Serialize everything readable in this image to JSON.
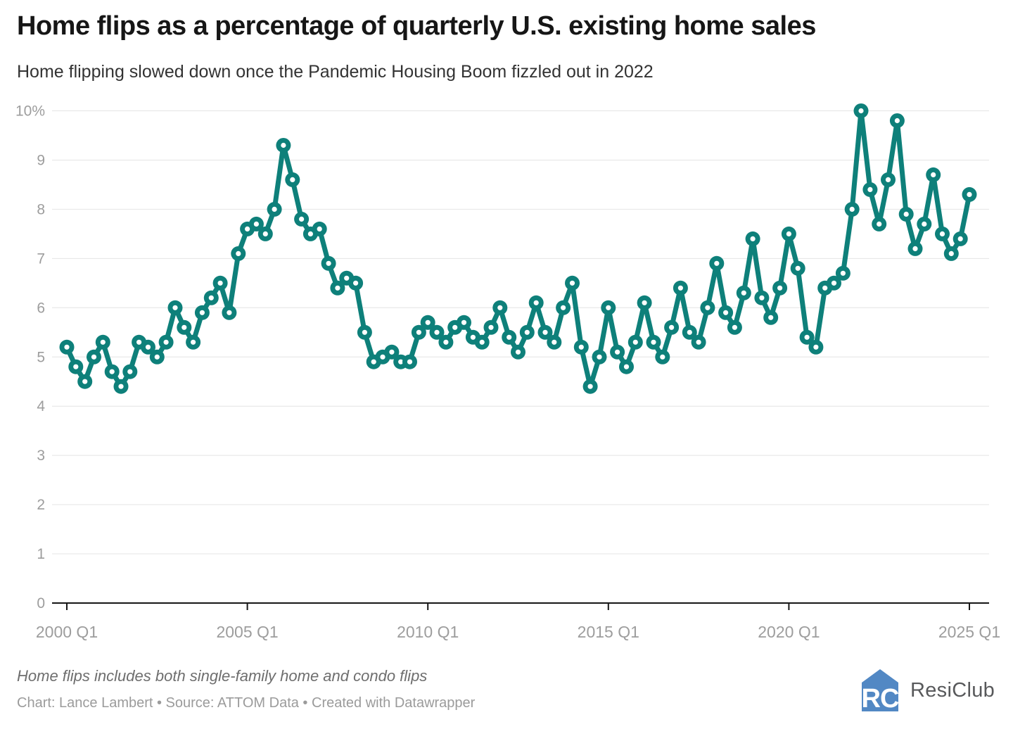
{
  "header": {
    "title": "Home flips as a percentage of quarterly U.S. existing home sales",
    "subtitle": "Home flipping slowed down once the Pandemic Housing Boom fizzled out in 2022"
  },
  "chart_data": {
    "type": "line",
    "title": "Home flips as a percentage of quarterly U.S. existing home sales",
    "subtitle": "Home flipping slowed down once the Pandemic Housing Boom fizzled out in 2022",
    "xlabel": "",
    "ylabel": "",
    "ylim": [
      0,
      10
    ],
    "grid": true,
    "legend": false,
    "line_color": "#0e807a",
    "grid_color": "#e4e4e4",
    "axis_color": "#161616",
    "tick_label_color": "#9d9d9d",
    "y_ticks": [
      "0",
      "1",
      "2",
      "3",
      "4",
      "5",
      "6",
      "7",
      "8",
      "9",
      "10%"
    ],
    "x_ticks": [
      {
        "label": "2000 Q1",
        "i": 0
      },
      {
        "label": "2005 Q1",
        "i": 20
      },
      {
        "label": "2010 Q1",
        "i": 40
      },
      {
        "label": "2015 Q1",
        "i": 60
      },
      {
        "label": "2020 Q1",
        "i": 80
      },
      {
        "label": "2025 Q1",
        "i": 100
      }
    ],
    "x": [
      "2000 Q1",
      "2000 Q2",
      "2000 Q3",
      "2000 Q4",
      "2001 Q1",
      "2001 Q2",
      "2001 Q3",
      "2001 Q4",
      "2002 Q1",
      "2002 Q2",
      "2002 Q3",
      "2002 Q4",
      "2003 Q1",
      "2003 Q2",
      "2003 Q3",
      "2003 Q4",
      "2004 Q1",
      "2004 Q2",
      "2004 Q3",
      "2004 Q4",
      "2005 Q1",
      "2005 Q2",
      "2005 Q3",
      "2005 Q4",
      "2006 Q1",
      "2006 Q2",
      "2006 Q3",
      "2006 Q4",
      "2007 Q1",
      "2007 Q2",
      "2007 Q3",
      "2007 Q4",
      "2008 Q1",
      "2008 Q2",
      "2008 Q3",
      "2008 Q4",
      "2009 Q1",
      "2009 Q2",
      "2009 Q3",
      "2009 Q4",
      "2010 Q1",
      "2010 Q2",
      "2010 Q3",
      "2010 Q4",
      "2011 Q1",
      "2011 Q2",
      "2011 Q3",
      "2011 Q4",
      "2012 Q1",
      "2012 Q2",
      "2012 Q3",
      "2012 Q4",
      "2013 Q1",
      "2013 Q2",
      "2013 Q3",
      "2013 Q4",
      "2014 Q1",
      "2014 Q2",
      "2014 Q3",
      "2014 Q4",
      "2015 Q1",
      "2015 Q2",
      "2015 Q3",
      "2015 Q4",
      "2016 Q1",
      "2016 Q2",
      "2016 Q3",
      "2016 Q4",
      "2017 Q1",
      "2017 Q2",
      "2017 Q3",
      "2017 Q4",
      "2018 Q1",
      "2018 Q2",
      "2018 Q3",
      "2018 Q4",
      "2019 Q1",
      "2019 Q2",
      "2019 Q3",
      "2019 Q4",
      "2020 Q1",
      "2020 Q2",
      "2020 Q3",
      "2020 Q4",
      "2021 Q1",
      "2021 Q2",
      "2021 Q3",
      "2021 Q4",
      "2022 Q1",
      "2022 Q2",
      "2022 Q3",
      "2022 Q4",
      "2023 Q1",
      "2023 Q2",
      "2023 Q3",
      "2023 Q4",
      "2024 Q1",
      "2024 Q2",
      "2024 Q3",
      "2024 Q4",
      "2025 Q1"
    ],
    "values": [
      5.2,
      4.8,
      4.5,
      5.0,
      5.3,
      4.7,
      4.4,
      4.7,
      5.3,
      5.2,
      5.0,
      5.3,
      6.0,
      5.6,
      5.3,
      5.9,
      6.2,
      6.5,
      5.9,
      7.1,
      7.6,
      7.7,
      7.5,
      8.0,
      9.3,
      8.6,
      7.8,
      7.5,
      7.6,
      6.9,
      6.4,
      6.6,
      6.5,
      5.5,
      4.9,
      5.0,
      5.1,
      4.9,
      4.9,
      5.5,
      5.7,
      5.5,
      5.3,
      5.6,
      5.7,
      5.4,
      5.3,
      5.6,
      6.0,
      5.4,
      5.1,
      5.5,
      6.1,
      5.5,
      5.3,
      6.0,
      6.5,
      5.2,
      4.4,
      5.0,
      6.0,
      5.1,
      4.8,
      5.3,
      6.1,
      5.3,
      5.0,
      5.6,
      6.4,
      5.5,
      5.3,
      6.0,
      6.9,
      5.9,
      5.6,
      6.3,
      7.4,
      6.2,
      5.8,
      6.4,
      7.5,
      6.8,
      5.4,
      5.2,
      6.4,
      6.5,
      6.7,
      8.0,
      10.0,
      8.4,
      7.7,
      8.6,
      9.8,
      7.9,
      7.2,
      7.7,
      8.7,
      7.5,
      7.1,
      7.4,
      8.3
    ]
  },
  "footer": {
    "note": "Home flips includes both single-family home and condo flips",
    "credit": "Chart: Lance Lambert • Source: ATTOM Data • Created with Datawrapper"
  },
  "logo": {
    "brand": "ResiClub",
    "monogram": "RC",
    "icon_color": "#5288c4",
    "text_color": "#58595b"
  }
}
